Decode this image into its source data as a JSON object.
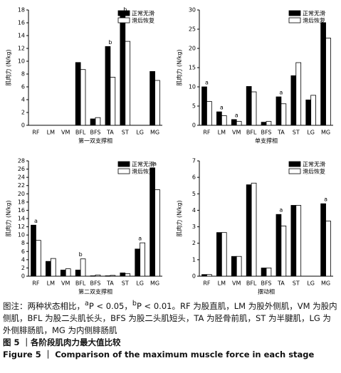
{
  "chart_data": [
    {
      "type": "bar",
      "x_label": "第一双支撑相",
      "y_label": "肌肉力 (N/kg)",
      "categories": [
        "RF",
        "LM",
        "VM",
        "BFL",
        "BFS",
        "TA",
        "ST",
        "LG",
        "MG"
      ],
      "series": [
        {
          "name": "正常无滑",
          "color": "#000000",
          "values": [
            0,
            0,
            0,
            9.8,
            1.0,
            12.3,
            17.4,
            0,
            8.4
          ]
        },
        {
          "name": "滑后恢复",
          "color": "#ffffff",
          "values": [
            0,
            0,
            0,
            8.7,
            1.2,
            7.5,
            13.1,
            0,
            7.0
          ]
        }
      ],
      "annotations": [
        null,
        null,
        null,
        null,
        null,
        "b",
        "b",
        null,
        null
      ],
      "ylim": [
        0,
        18
      ],
      "yticks": [
        0,
        2,
        4,
        6,
        8,
        10,
        12,
        14,
        16,
        18
      ],
      "legend": "top-right"
    },
    {
      "type": "bar",
      "x_label": "单支撑相",
      "y_label": "肌肉力 (N/kg)",
      "categories": [
        "RF",
        "LM",
        "VM",
        "BFL",
        "BFS",
        "TA",
        "ST",
        "LG",
        "MG"
      ],
      "series": [
        {
          "name": "正常无滑",
          "color": "#000000",
          "values": [
            10.0,
            3.5,
            1.5,
            10.1,
            0.8,
            7.4,
            12.9,
            6.6,
            26.7
          ]
        },
        {
          "name": "滑后恢复",
          "color": "#ffffff",
          "values": [
            6.2,
            2.5,
            1.0,
            8.7,
            1.0,
            5.6,
            16.3,
            7.8,
            22.7
          ]
        }
      ],
      "annotations": [
        "a",
        "a",
        "a",
        null,
        null,
        "a",
        null,
        null,
        null
      ],
      "ylim": [
        0,
        30
      ],
      "yticks": [
        0,
        5,
        10,
        15,
        20,
        25,
        30
      ],
      "legend": "top-right"
    },
    {
      "type": "bar",
      "x_label": "第二双支撑相",
      "y_label": "肌肉力 (N/kg)",
      "categories": [
        "RF",
        "LM",
        "VM",
        "BFL",
        "BFS",
        "TA",
        "ST",
        "LG",
        "MG"
      ],
      "series": [
        {
          "name": "正常无滑",
          "color": "#000000",
          "values": [
            12.4,
            3.6,
            1.5,
            1.5,
            0.1,
            0.1,
            0.8,
            6.6,
            26.3
          ]
        },
        {
          "name": "滑后恢复",
          "color": "#ffffff",
          "values": [
            8.7,
            4.3,
            1.8,
            4.2,
            0.3,
            0.2,
            0.6,
            8.1,
            21.0
          ]
        }
      ],
      "annotations": [
        "a",
        null,
        null,
        "b",
        null,
        null,
        null,
        "a",
        "a"
      ],
      "ylim": [
        0,
        28
      ],
      "yticks": [
        0,
        2,
        4,
        6,
        8,
        10,
        12,
        14,
        16,
        18,
        20,
        22,
        24,
        26,
        28
      ],
      "legend": "top-right"
    },
    {
      "type": "bar",
      "x_label": "摆动相",
      "y_label": "肌肉力 (N/kg)",
      "categories": [
        "RF",
        "LM",
        "VM",
        "BFL",
        "BFS",
        "TA",
        "ST",
        "LG",
        "MG"
      ],
      "series": [
        {
          "name": "正常无滑",
          "color": "#000000",
          "values": [
            0.1,
            2.65,
            1.2,
            5.55,
            0.5,
            3.75,
            4.3,
            0,
            4.4
          ]
        },
        {
          "name": "滑后恢复",
          "color": "#ffffff",
          "values": [
            0.1,
            2.65,
            1.2,
            5.65,
            0.5,
            3.05,
            4.3,
            0,
            3.35
          ]
        }
      ],
      "annotations": [
        null,
        null,
        null,
        null,
        null,
        "a",
        null,
        null,
        "a"
      ],
      "ylim": [
        0,
        7
      ],
      "yticks": [
        0,
        1,
        2,
        3,
        4,
        5,
        6,
        7
      ],
      "legend": "top-right"
    }
  ],
  "caption": {
    "note_parts": [
      "图注：两种状态相比，",
      "a",
      "P < 0.05，",
      "b",
      "P < 0.01。RF 为股直肌，LM 为股外侧肌，VM 为股内侧肌，BFL 为股二头肌长头，BFS 为股二头肌短头，TA 为胫骨前肌，ST 为半腱肌，LG 为外侧腓肠肌，MG 为内侧腓肠肌"
    ],
    "figure_cn": "图 5 ｜各阶段肌肉力最大值比较",
    "figure_en": "Figure 5 ｜ Comparison of the maximum muscle force in each stage"
  }
}
